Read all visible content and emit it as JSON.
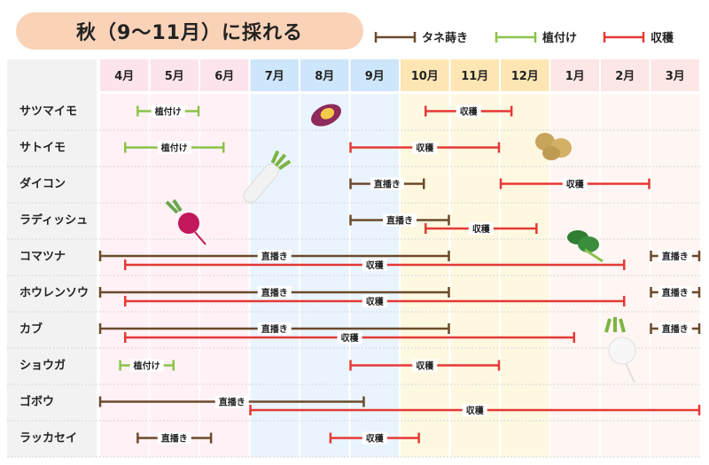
{
  "title": "秋（9〜11月）に採れる",
  "legend": [
    {
      "key": "sow",
      "label": "タネ蒔き",
      "color": "#6b4a2b"
    },
    {
      "key": "plant",
      "label": "植付け",
      "color": "#8bc34a"
    },
    {
      "key": "harvest",
      "label": "収穫",
      "color": "#e53935"
    }
  ],
  "chart_data": {
    "type": "table",
    "months": [
      "4月",
      "5月",
      "6月",
      "7月",
      "8月",
      "9月",
      "10月",
      "11月",
      "12月",
      "1月",
      "2月",
      "3月"
    ],
    "crops": [
      {
        "name": "サツマイモ",
        "bars": [
          {
            "type": "plant",
            "label": "植付け",
            "start": 0.75,
            "end": 2.0
          },
          {
            "type": "harvest",
            "label": "収穫",
            "start": 6.5,
            "end": 8.25
          }
        ]
      },
      {
        "name": "サトイモ",
        "bars": [
          {
            "type": "plant",
            "label": "植付け",
            "start": 0.5,
            "end": 2.5
          },
          {
            "type": "harvest",
            "label": "収穫",
            "start": 5.0,
            "end": 8.0
          }
        ]
      },
      {
        "name": "ダイコン",
        "bars": [
          {
            "type": "sow",
            "label": "直播き",
            "start": 5.0,
            "end": 6.5
          },
          {
            "type": "harvest",
            "label": "収穫",
            "start": 8.0,
            "end": 11.0
          }
        ]
      },
      {
        "name": "ラディッシュ",
        "bars": [
          {
            "type": "sow",
            "label": "直播き",
            "start": 5.0,
            "end": 7.0
          },
          {
            "type": "harvest",
            "label": "収穫",
            "start": 6.5,
            "end": 8.75
          }
        ]
      },
      {
        "name": "コマツナ",
        "bars": [
          {
            "type": "sow",
            "label": "直播き",
            "start": 0.0,
            "end": 7.0
          },
          {
            "type": "harvest",
            "label": "収穫",
            "start": 0.5,
            "end": 10.5
          },
          {
            "type": "sow",
            "label": "直播き",
            "start": 11.0,
            "end": 12.0
          }
        ]
      },
      {
        "name": "ホウレンソウ",
        "bars": [
          {
            "type": "sow",
            "label": "直播き",
            "start": 0.0,
            "end": 7.0
          },
          {
            "type": "harvest",
            "label": "収穫",
            "start": 0.5,
            "end": 10.5
          },
          {
            "type": "sow",
            "label": "直播き",
            "start": 11.0,
            "end": 12.0
          }
        ]
      },
      {
        "name": "カブ",
        "bars": [
          {
            "type": "sow",
            "label": "直播き",
            "start": 0.0,
            "end": 7.0
          },
          {
            "type": "harvest",
            "label": "収穫",
            "start": 0.5,
            "end": 9.5
          },
          {
            "type": "sow",
            "label": "直播き",
            "start": 11.0,
            "end": 12.0
          }
        ]
      },
      {
        "name": "ショウガ",
        "bars": [
          {
            "type": "plant",
            "label": "植付け",
            "start": 0.4,
            "end": 1.5
          },
          {
            "type": "harvest",
            "label": "収穫",
            "start": 5.0,
            "end": 8.0
          }
        ]
      },
      {
        "name": "ゴボウ",
        "bars": [
          {
            "type": "sow",
            "label": "直播き",
            "start": 0.0,
            "end": 5.3
          },
          {
            "type": "harvest",
            "label": "収穫",
            "start": 3.0,
            "end": 12.0
          }
        ]
      },
      {
        "name": "ラッカセイ",
        "bars": [
          {
            "type": "sow",
            "label": "直播き",
            "start": 0.75,
            "end": 2.25
          },
          {
            "type": "harvest",
            "label": "収穫",
            "start": 4.6,
            "end": 6.4
          }
        ]
      }
    ],
    "grid": true
  },
  "colors": {
    "spring": "#fde4ec",
    "spring_band": "#fff1f5",
    "summer": "#cde6fb",
    "summer_band": "#eaf4fe",
    "autumn": "#fde6b3",
    "autumn_band": "#fff8e1",
    "winter": "#fde6e6",
    "winter_band": "#fff5f3"
  }
}
